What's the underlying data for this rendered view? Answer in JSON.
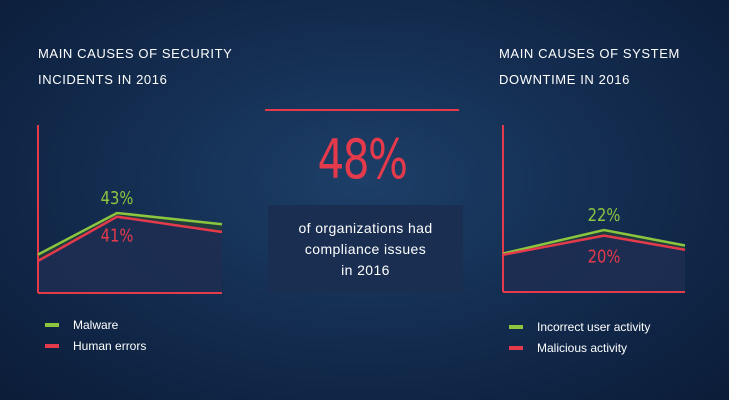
{
  "left_panel": {
    "title": "MAIN CAUSES OF SECURITY\nINCIDENTS IN 2016",
    "legend": [
      {
        "label": "Malware",
        "color": "#8cc63f"
      },
      {
        "label": "Human errors",
        "color": "#e53a4b"
      }
    ]
  },
  "right_panel": {
    "title": "MAIN CAUSES OF SYSTEM\nDOWNTIME IN 2016",
    "legend": [
      {
        "label": "Incorrect user activity",
        "color": "#8cc63f"
      },
      {
        "label": "Malicious activity",
        "color": "#e53a4b"
      }
    ]
  },
  "center": {
    "stat": "48%",
    "lines": [
      "of organizations had",
      "compliance issues",
      "in 2016"
    ]
  },
  "colors": {
    "green": "#8cc63f",
    "red": "#e53a4b",
    "axis": "#e53a4b"
  },
  "chart_data": [
    {
      "type": "area",
      "title": "MAIN CAUSES OF SECURITY INCIDENTS IN 2016",
      "series": [
        {
          "name": "Malware",
          "color": "#8cc63f",
          "label": "43%",
          "peak": 43,
          "shape": [
            0.48,
            1.0,
            0.86
          ]
        },
        {
          "name": "Human errors",
          "color": "#e53a4b",
          "label": "41%",
          "peak": 41,
          "shape": [
            0.42,
            1.0,
            0.8
          ]
        }
      ],
      "legend": "bottom-left",
      "grid": false
    },
    {
      "type": "area",
      "title": "MAIN CAUSES OF SYSTEM DOWNTIME IN 2016",
      "series": [
        {
          "name": "Incorrect user activity",
          "color": "#8cc63f",
          "label": "22%",
          "peak": 22,
          "shape": [
            0.62,
            1.0,
            0.75
          ]
        },
        {
          "name": "Malicious activity",
          "color": "#e53a4b",
          "label": "20%",
          "peak": 20,
          "shape": [
            0.66,
            1.0,
            0.75
          ]
        }
      ],
      "legend": "bottom-left",
      "grid": false
    }
  ]
}
